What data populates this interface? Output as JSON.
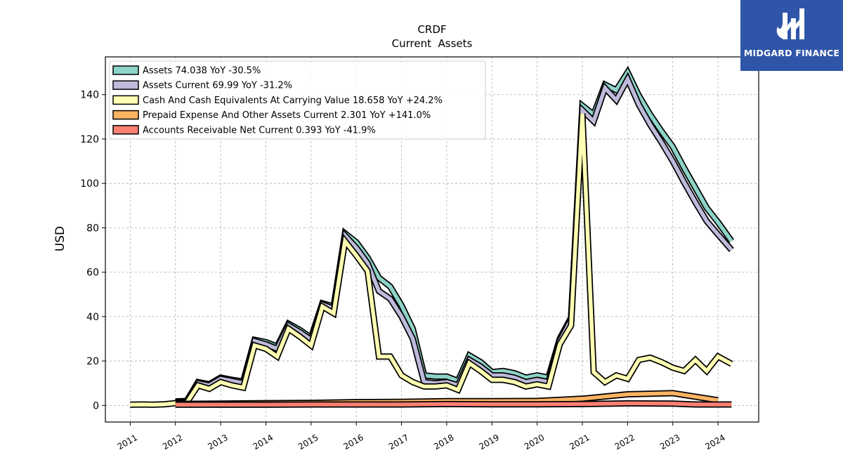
{
  "chart_data": {
    "type": "area",
    "title": "CRDF",
    "subtitle": "Current  Assets",
    "ylabel": "USD",
    "xlabel": "",
    "xlim": [
      2010.45,
      2024.9
    ],
    "ylim": [
      -7.5,
      157
    ],
    "yticks": [
      0,
      20,
      40,
      60,
      80,
      100,
      120,
      140
    ],
    "xticks": [
      "2011",
      "2012",
      "2013",
      "2014",
      "2015",
      "2016",
      "2017",
      "2018",
      "2019",
      "2020",
      "2021",
      "2022",
      "2023",
      "2024"
    ],
    "grid": true,
    "legend_position": "top-left",
    "series": [
      {
        "name": "Assets  74.038 YoY -30.5%",
        "color": "#8dd3c7",
        "points": [
          [
            2012.0,
            1.8
          ],
          [
            2012.25,
            2.0
          ],
          [
            2012.5,
            10.5
          ],
          [
            2012.75,
            9.5
          ],
          [
            2013.0,
            12.5
          ],
          [
            2013.25,
            11.5
          ],
          [
            2013.5,
            10.8
          ],
          [
            2013.75,
            29.5
          ],
          [
            2014.0,
            28.5
          ],
          [
            2014.25,
            26.5
          ],
          [
            2014.5,
            36.8
          ],
          [
            2014.75,
            34.0
          ],
          [
            2015.0,
            30.5
          ],
          [
            2015.25,
            46.0
          ],
          [
            2015.5,
            44.5
          ],
          [
            2015.75,
            77.5
          ],
          [
            2016.0,
            73.5
          ],
          [
            2016.25,
            66.5
          ],
          [
            2016.5,
            57.5
          ],
          [
            2016.75,
            53.5
          ],
          [
            2017.0,
            45.0
          ],
          [
            2017.25,
            34.5
          ],
          [
            2017.5,
            13.5
          ],
          [
            2017.75,
            13.0
          ],
          [
            2018.0,
            13.0
          ],
          [
            2018.25,
            11.0
          ],
          [
            2018.5,
            22.5
          ],
          [
            2018.75,
            19.5
          ],
          [
            2019.0,
            15.0
          ],
          [
            2019.25,
            15.5
          ],
          [
            2019.5,
            14.5
          ],
          [
            2019.75,
            12.5
          ],
          [
            2020.0,
            13.5
          ],
          [
            2020.25,
            12.5
          ],
          [
            2020.5,
            30.0
          ],
          [
            2020.75,
            39.5
          ],
          [
            2021.0,
            135.0
          ],
          [
            2021.25,
            131.0
          ],
          [
            2021.5,
            144.5
          ],
          [
            2021.75,
            142.0
          ],
          [
            2022.0,
            150.0
          ],
          [
            2022.25,
            139.5
          ],
          [
            2022.5,
            131.0
          ],
          [
            2022.75,
            123.5
          ],
          [
            2023.0,
            116.5
          ],
          [
            2023.25,
            107.0
          ],
          [
            2023.5,
            98.0
          ],
          [
            2023.75,
            89.0
          ],
          [
            2024.0,
            82.5
          ],
          [
            2024.3,
            74.0
          ]
        ]
      },
      {
        "name": "Assets Current  69.99 YoY -31.2%",
        "color": "#bebada",
        "points": [
          [
            2012.0,
            1.5
          ],
          [
            2012.25,
            1.8
          ],
          [
            2012.5,
            10.0
          ],
          [
            2012.75,
            9.0
          ],
          [
            2013.0,
            12.0
          ],
          [
            2013.25,
            11.0
          ],
          [
            2013.5,
            10.0
          ],
          [
            2013.75,
            29.0
          ],
          [
            2014.0,
            27.5
          ],
          [
            2014.25,
            25.5
          ],
          [
            2014.5,
            36.0
          ],
          [
            2014.75,
            33.0
          ],
          [
            2015.0,
            29.5
          ],
          [
            2015.25,
            45.5
          ],
          [
            2015.5,
            43.5
          ],
          [
            2015.75,
            76.5
          ],
          [
            2016.0,
            71.0
          ],
          [
            2016.25,
            64.0
          ],
          [
            2016.5,
            51.5
          ],
          [
            2016.75,
            48.0
          ],
          [
            2017.0,
            40.0
          ],
          [
            2017.25,
            30.0
          ],
          [
            2017.5,
            10.5
          ],
          [
            2017.75,
            10.0
          ],
          [
            2018.0,
            10.5
          ],
          [
            2018.25,
            9.0
          ],
          [
            2018.5,
            20.5
          ],
          [
            2018.75,
            17.5
          ],
          [
            2019.0,
            13.5
          ],
          [
            2019.25,
            13.5
          ],
          [
            2019.5,
            12.5
          ],
          [
            2019.75,
            10.5
          ],
          [
            2020.0,
            11.5
          ],
          [
            2020.25,
            10.5
          ],
          [
            2020.5,
            29.0
          ],
          [
            2020.75,
            38.5
          ],
          [
            2021.0,
            133.0
          ],
          [
            2021.25,
            128.0
          ],
          [
            2021.5,
            143.0
          ],
          [
            2021.75,
            137.5
          ],
          [
            2022.0,
            147.0
          ],
          [
            2022.25,
            135.5
          ],
          [
            2022.5,
            126.5
          ],
          [
            2022.75,
            118.5
          ],
          [
            2023.0,
            110.0
          ],
          [
            2023.25,
            100.5
          ],
          [
            2023.5,
            91.5
          ],
          [
            2023.75,
            83.0
          ],
          [
            2024.0,
            77.0
          ],
          [
            2024.3,
            70.0
          ]
        ]
      },
      {
        "name": "Cash And Cash Equivalents At Carrying Value  18.658 YoY +24.2%",
        "color": "#ffffb3",
        "points": [
          [
            2011.0,
            0.3
          ],
          [
            2011.25,
            0.4
          ],
          [
            2011.5,
            0.3
          ],
          [
            2011.75,
            0.5
          ],
          [
            2012.0,
            1.0
          ],
          [
            2012.25,
            1.2
          ],
          [
            2012.5,
            9.0
          ],
          [
            2012.75,
            7.5
          ],
          [
            2013.0,
            10.5
          ],
          [
            2013.25,
            9.0
          ],
          [
            2013.5,
            8.0
          ],
          [
            2013.75,
            27.0
          ],
          [
            2014.0,
            25.5
          ],
          [
            2014.25,
            22.0
          ],
          [
            2014.5,
            34.5
          ],
          [
            2014.75,
            31.0
          ],
          [
            2015.0,
            27.0
          ],
          [
            2015.25,
            44.5
          ],
          [
            2015.5,
            41.5
          ],
          [
            2015.75,
            74.0
          ],
          [
            2016.0,
            67.5
          ],
          [
            2016.25,
            60.5
          ],
          [
            2016.5,
            22.0
          ],
          [
            2016.75,
            22.0
          ],
          [
            2017.0,
            13.5
          ],
          [
            2017.25,
            10.5
          ],
          [
            2017.5,
            8.5
          ],
          [
            2017.75,
            8.5
          ],
          [
            2018.0,
            9.0
          ],
          [
            2018.25,
            7.0
          ],
          [
            2018.5,
            19.0
          ],
          [
            2018.75,
            15.5
          ],
          [
            2019.0,
            11.5
          ],
          [
            2019.25,
            11.5
          ],
          [
            2019.5,
            10.5
          ],
          [
            2019.75,
            8.5
          ],
          [
            2020.0,
            9.5
          ],
          [
            2020.25,
            8.5
          ],
          [
            2020.5,
            27.5
          ],
          [
            2020.75,
            36.0
          ],
          [
            2021.0,
            131.5
          ],
          [
            2021.25,
            15.0
          ],
          [
            2021.5,
            10.5
          ],
          [
            2021.75,
            13.5
          ],
          [
            2022.0,
            12.0
          ],
          [
            2022.25,
            20.5
          ],
          [
            2022.5,
            21.5
          ],
          [
            2022.75,
            19.5
          ],
          [
            2023.0,
            17.0
          ],
          [
            2023.25,
            15.5
          ],
          [
            2023.5,
            20.5
          ],
          [
            2023.75,
            15.5
          ],
          [
            2024.0,
            22.0
          ],
          [
            2024.3,
            18.7
          ]
        ]
      },
      {
        "name": "Prepaid Expense And Other Assets Current  2.301 YoY +141.0%",
        "color": "#fdb462",
        "points": [
          [
            2012.0,
            0.7
          ],
          [
            2013.0,
            0.8
          ],
          [
            2014.0,
            1.0
          ],
          [
            2015.0,
            1.1
          ],
          [
            2016.0,
            1.5
          ],
          [
            2017.0,
            1.6
          ],
          [
            2018.0,
            1.9
          ],
          [
            2019.0,
            1.9
          ],
          [
            2020.0,
            2.0
          ],
          [
            2021.0,
            3.0
          ],
          [
            2022.0,
            5.0
          ],
          [
            2023.0,
            5.5
          ],
          [
            2024.0,
            2.3
          ]
        ]
      },
      {
        "name": "Accounts Receivable Net Current  0.393 YoY -41.9%",
        "color": "#fb8072",
        "points": [
          [
            2012.0,
            0.3
          ],
          [
            2013.0,
            0.3
          ],
          [
            2014.0,
            0.3
          ],
          [
            2015.0,
            0.4
          ],
          [
            2016.0,
            0.4
          ],
          [
            2017.0,
            0.4
          ],
          [
            2018.0,
            0.6
          ],
          [
            2019.0,
            0.5
          ],
          [
            2020.0,
            0.5
          ],
          [
            2021.0,
            0.6
          ],
          [
            2022.0,
            0.9
          ],
          [
            2023.0,
            0.8
          ],
          [
            2023.5,
            0.4
          ],
          [
            2024.3,
            0.4
          ]
        ]
      }
    ]
  },
  "logo": {
    "text": "MIDGARD FINANCE",
    "background": "#2f55a8",
    "icon": "midgard-logo-icon"
  }
}
